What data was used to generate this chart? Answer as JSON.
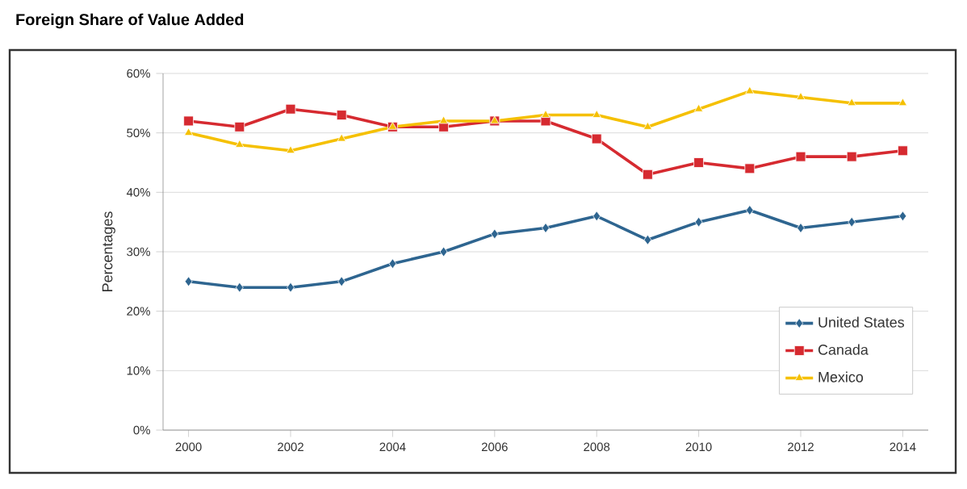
{
  "chart_data": {
    "type": "line",
    "title": "Foreign Share of Value Added",
    "ylabel": "Percentages",
    "x": [
      2000,
      2001,
      2002,
      2003,
      2004,
      2005,
      2006,
      2007,
      2008,
      2009,
      2010,
      2011,
      2012,
      2013,
      2014
    ],
    "xlim": [
      1999.5,
      2014.5
    ],
    "xticks": [
      2000,
      2002,
      2004,
      2006,
      2008,
      2010,
      2012,
      2014
    ],
    "ylim": [
      0,
      60
    ],
    "yticks": [
      {
        "value": 0,
        "label": "0%"
      },
      {
        "value": 10,
        "label": "10%"
      },
      {
        "value": 20,
        "label": "20%"
      },
      {
        "value": 30,
        "label": "30%"
      },
      {
        "value": 40,
        "label": "40%"
      },
      {
        "value": 50,
        "label": "50%"
      },
      {
        "value": 60,
        "label": "60%"
      }
    ],
    "grid": "y",
    "legend": "bottom right",
    "line_style": "solid",
    "series": [
      {
        "name": "United States",
        "color": "#2e6590",
        "marker": "diamond",
        "values": [
          25,
          24,
          24,
          25,
          28,
          30,
          33,
          34,
          36,
          32,
          35,
          37,
          34,
          35,
          36
        ]
      },
      {
        "name": "Canada",
        "color": "#d62a30",
        "marker": "square",
        "values": [
          52,
          51,
          54,
          53,
          51,
          51,
          52,
          52,
          49,
          43,
          45,
          44,
          46,
          46,
          47
        ]
      },
      {
        "name": "Mexico",
        "color": "#f5c000",
        "marker": "triangle",
        "values": [
          50,
          48,
          47,
          49,
          51,
          52,
          52,
          53,
          53,
          51,
          54,
          57,
          56,
          55,
          55
        ]
      }
    ]
  }
}
